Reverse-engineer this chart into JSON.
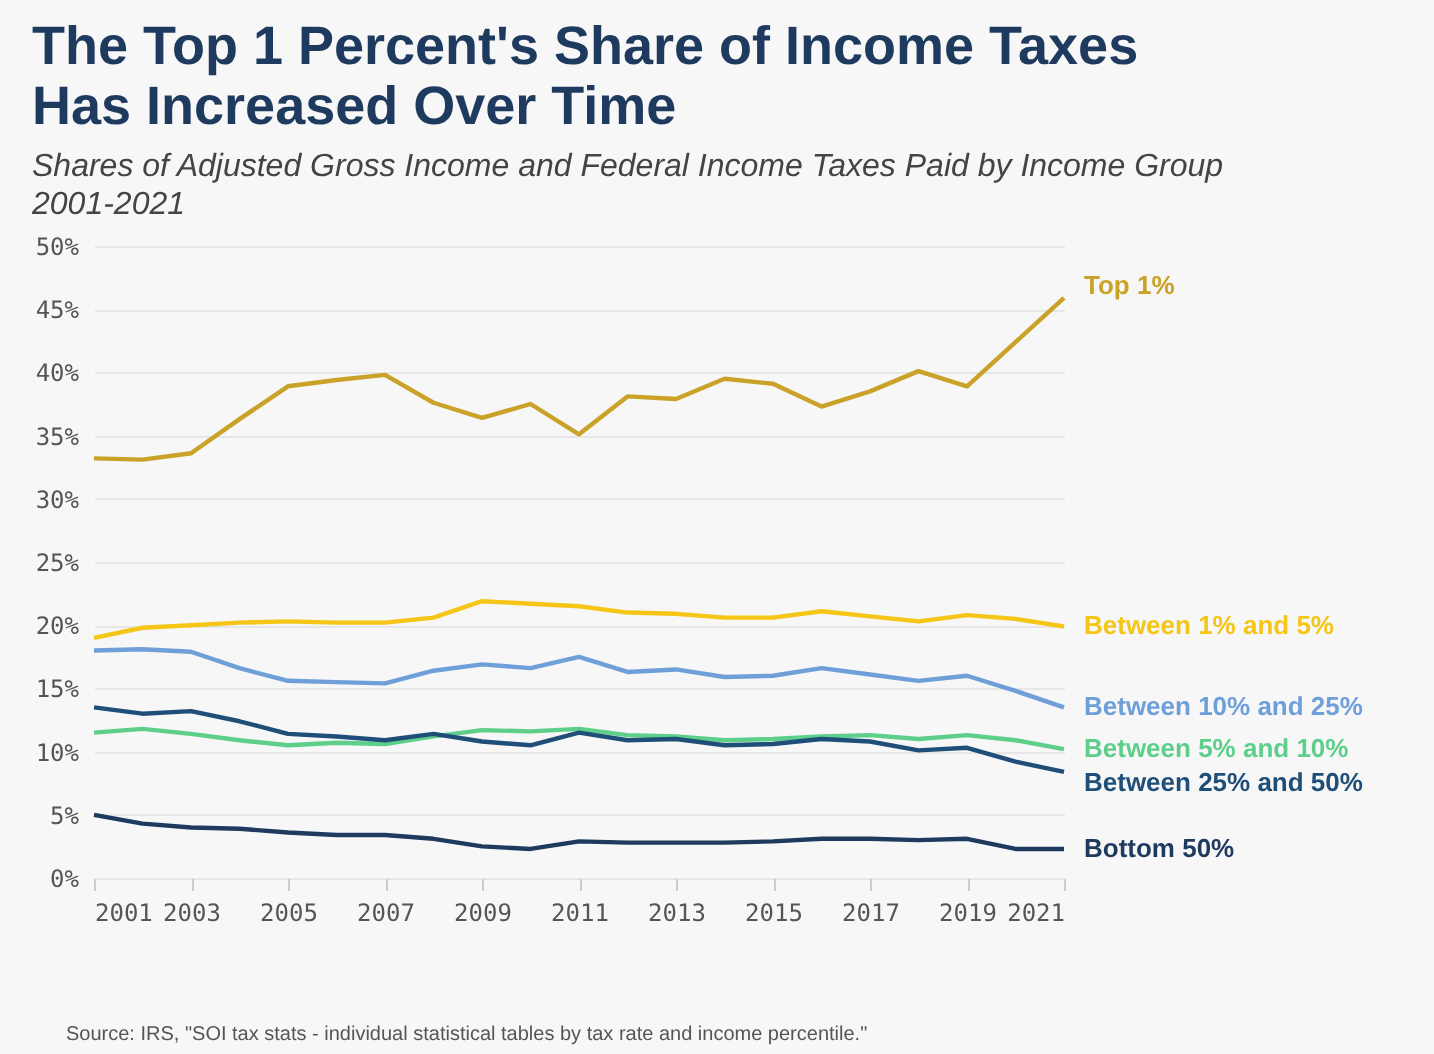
{
  "chart_data": {
    "type": "line",
    "title": "The Top 1 Percent's Share of Income Taxes\nHas Increased Over Time",
    "subtitle": "Shares of Adjusted Gross Income and Federal Income Taxes Paid by Income Group\n2001-2021",
    "annotations": [
      "Source: IRS, \"SOI tax stats - individual statistical tables by tax rate and income percentile.\""
    ],
    "x": [
      2001,
      2002,
      2003,
      2004,
      2005,
      2006,
      2007,
      2008,
      2009,
      2010,
      2011,
      2012,
      2013,
      2014,
      2015,
      2016,
      2017,
      2018,
      2019,
      2020,
      2021
    ],
    "series": [
      {
        "name": "Top 1%",
        "color": "#c9a227",
        "values": [
          33.2,
          33.1,
          33.6,
          36.3,
          38.9,
          39.4,
          39.8,
          37.6,
          36.4,
          37.5,
          35.1,
          38.1,
          37.9,
          39.5,
          39.1,
          37.3,
          38.5,
          40.1,
          38.9,
          42.4,
          45.9
        ]
      },
      {
        "name": "Between 1% and 5%",
        "color": "#f5c518",
        "values": [
          19.0,
          19.8,
          20.0,
          20.2,
          20.3,
          20.2,
          20.2,
          20.6,
          21.9,
          21.7,
          21.5,
          21.0,
          20.9,
          20.6,
          20.6,
          21.1,
          20.7,
          20.3,
          20.8,
          20.5,
          19.9
        ]
      },
      {
        "name": "Between 10% and 25%",
        "color": "#6f9fd8",
        "values": [
          18.0,
          18.1,
          17.9,
          16.6,
          15.6,
          15.5,
          15.4,
          16.4,
          16.9,
          16.6,
          17.5,
          16.3,
          16.5,
          15.9,
          16.0,
          16.6,
          16.1,
          15.6,
          16.0,
          14.8,
          13.5
        ]
      },
      {
        "name": "Between 5% and 10%",
        "color": "#5dcf8a",
        "values": [
          11.5,
          11.8,
          11.4,
          10.9,
          10.5,
          10.7,
          10.6,
          11.2,
          11.7,
          11.6,
          11.8,
          11.3,
          11.2,
          10.9,
          11.0,
          11.2,
          11.3,
          11.0,
          11.3,
          10.9,
          10.2
        ]
      },
      {
        "name": "Between 25% and 50%",
        "color": "#1f4e79",
        "values": [
          13.5,
          13.0,
          13.2,
          12.4,
          11.4,
          11.2,
          10.9,
          11.4,
          10.8,
          10.5,
          11.5,
          10.9,
          11.0,
          10.5,
          10.6,
          11.0,
          10.8,
          10.1,
          10.3,
          9.2,
          8.4
        ]
      },
      {
        "name": "Bottom 50%",
        "color": "#1e3a5f",
        "values": [
          5.0,
          4.3,
          4.0,
          3.9,
          3.6,
          3.4,
          3.4,
          3.1,
          2.5,
          2.3,
          2.9,
          2.8,
          2.8,
          2.8,
          2.9,
          3.1,
          3.1,
          3.0,
          3.1,
          2.3,
          2.3
        ]
      }
    ],
    "xlim": [
      2001,
      2021
    ],
    "xticks": [
      2001,
      2003,
      2005,
      2007,
      2009,
      2011,
      2013,
      2015,
      2017,
      2019,
      2021
    ],
    "ylim": [
      0,
      50
    ],
    "yticks": [
      {
        "value": 0,
        "label": "0%"
      },
      {
        "value": 5,
        "label": "5%"
      },
      {
        "value": 10,
        "label": "10%"
      },
      {
        "value": 15,
        "label": "15%"
      },
      {
        "value": 20,
        "label": "20%"
      },
      {
        "value": 25,
        "label": "25%"
      },
      {
        "value": 30,
        "label": "30%"
      },
      {
        "value": 35,
        "label": "35%"
      },
      {
        "value": 40,
        "label": "40%"
      },
      {
        "value": 45,
        "label": "45%"
      },
      {
        "value": 50,
        "label": "50%"
      }
    ],
    "grid": "y"
  }
}
